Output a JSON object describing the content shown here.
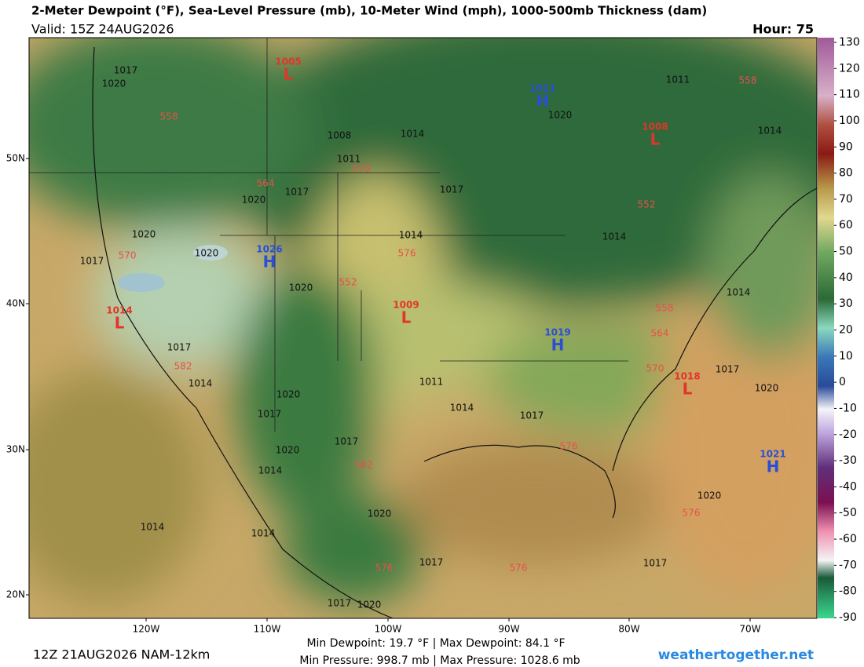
{
  "header": {
    "title": "2-Meter Dewpoint (°F), Sea-Level Pressure (mb), 10-Meter Wind (mph), 1000-500mb Thickness (dam)",
    "valid": "Valid: 15Z 24AUG2026",
    "hour": "Hour: 75"
  },
  "map": {
    "lat_labels": [
      "50N",
      "40N",
      "30N",
      "20N"
    ],
    "lon_labels": [
      "120W",
      "110W",
      "100W",
      "90W",
      "80W",
      "70W"
    ],
    "centers": [
      {
        "value": "1005",
        "letter": "L"
      },
      {
        "value": "1021",
        "letter": "H"
      },
      {
        "value": "1008",
        "letter": "L"
      },
      {
        "value": "1026",
        "letter": "H"
      },
      {
        "value": "1014",
        "letter": "L"
      },
      {
        "value": "1009",
        "letter": "L"
      },
      {
        "value": "1019",
        "letter": "H"
      },
      {
        "value": "1018",
        "letter": "L"
      },
      {
        "value": "1021",
        "letter": "H"
      }
    ],
    "isobar_labels": [
      "1017",
      "1020",
      "1008",
      "1011",
      "1017",
      "1020",
      "1020",
      "1020",
      "1017",
      "1014",
      "1020",
      "1017",
      "1014",
      "1020",
      "1017",
      "1011",
      "1014",
      "1017",
      "1020",
      "1014",
      "1017",
      "1020",
      "1014",
      "1014",
      "1017",
      "1017",
      "1020",
      "1020",
      "1011",
      "1014",
      "1014",
      "1014",
      "1017",
      "1020",
      "1020",
      "1017",
      "1017",
      "1014"
    ],
    "thickness_labels": [
      "558",
      "570",
      "564",
      "570",
      "576",
      "552",
      "558",
      "564",
      "570",
      "582",
      "582",
      "576",
      "576",
      "576",
      "576",
      "552",
      "558"
    ]
  },
  "colorbar": {
    "ticks": [
      "130",
      "120",
      "110",
      "100",
      "90",
      "80",
      "70",
      "60",
      "50",
      "40",
      "30",
      "20",
      "10",
      "0",
      "-10",
      "-20",
      "-30",
      "-40",
      "-50",
      "-60",
      "-70",
      "-80",
      "-90"
    ]
  },
  "footer": {
    "run": "12Z 21AUG2026 NAM-12km",
    "dewpoint": "Min Dewpoint:  19.7 °F | Max Dewpoint:  84.1 °F",
    "pressure": "Min Pressure: 998.7 mb | Max Pressure: 1028.6 mb",
    "site": "weathertogether.net"
  }
}
